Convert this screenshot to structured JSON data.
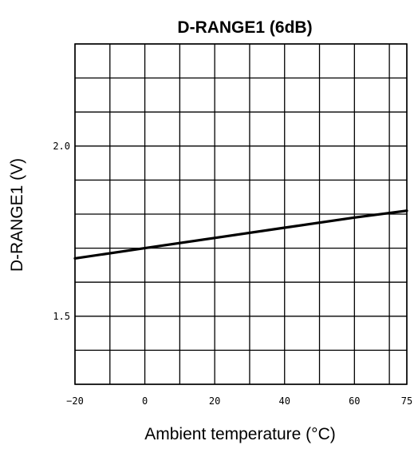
{
  "chart_data": {
    "type": "line",
    "title": "D-RANGE1 (6dB)",
    "xlabel": "Ambient temperature (°C)",
    "ylabel": "D-RANGE1 (V)",
    "xlim": [
      -20,
      75
    ],
    "ylim": [
      1.3,
      2.3
    ],
    "x_grid": [
      -20,
      -10,
      0,
      10,
      20,
      30,
      40,
      50,
      60,
      70,
      75
    ],
    "y_grid": [
      1.3,
      1.4,
      1.5,
      1.6,
      1.7,
      1.8,
      1.9,
      2.0,
      2.1,
      2.2,
      2.3
    ],
    "x_ticks": [
      {
        "value": -20,
        "label": "−20"
      },
      {
        "value": 0,
        "label": "0"
      },
      {
        "value": 20,
        "label": "20"
      },
      {
        "value": 40,
        "label": "40"
      },
      {
        "value": 60,
        "label": "60"
      },
      {
        "value": 75,
        "label": "75"
      }
    ],
    "y_ticks": [
      {
        "value": 2.0,
        "label": "2.0"
      },
      {
        "value": 1.5,
        "label": "1.5"
      }
    ],
    "grid": true,
    "series": [
      {
        "x": [
          -20,
          0,
          20,
          40,
          60,
          75
        ],
        "y": [
          1.67,
          1.7,
          1.73,
          1.76,
          1.79,
          1.81
        ]
      }
    ]
  }
}
